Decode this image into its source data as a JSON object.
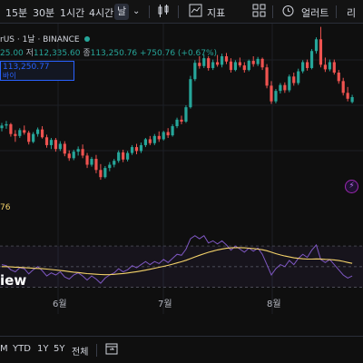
{
  "toolbar": {
    "timeframes": [
      "15분",
      "30분",
      "1시간",
      "4시간",
      "날"
    ],
    "active_timeframe": "날",
    "indicators_label": "지표",
    "alert_label": "얼러트",
    "cut_label": "리"
  },
  "legend": {
    "symbol": "rUS · 1날 · BINANCE",
    "open_tail": "25.00",
    "low_label": "저",
    "low_value": "112,335.60",
    "close_label": "종",
    "close_value": "113,250.76",
    "change": "+750.76 (+0.67%)",
    "price_box_value": "113,250.77",
    "price_box_label": "바이"
  },
  "rsi_value_tail": "76",
  "logo_tail": "iew",
  "months": [
    "6월",
    "7월",
    "8월"
  ],
  "range": {
    "items": [
      "M",
      "YTD",
      "1Y",
      "5Y",
      "전체"
    ]
  },
  "colors": {
    "up": "#26a69a",
    "down": "#ef5350",
    "rsi": "#7e57c2",
    "rsi_ma": "#f5d36a",
    "background": "#0f0f0f"
  },
  "chart_data": {
    "type": "candlestick",
    "title": "",
    "series": [
      {
        "name": "BTCUSDT daily",
        "values": []
      }
    ],
    "candles": [
      [
        108.5,
        109.3,
        108.0,
        108.9
      ],
      [
        108.9,
        109.6,
        108.4,
        109.1
      ],
      [
        109.1,
        109.3,
        107.2,
        107.6
      ],
      [
        107.6,
        108.2,
        106.4,
        107.3
      ],
      [
        107.3,
        108.5,
        107.0,
        108.2
      ],
      [
        108.2,
        108.9,
        107.5,
        107.8
      ],
      [
        107.8,
        108.1,
        106.0,
        106.4
      ],
      [
        106.4,
        107.9,
        106.2,
        107.6
      ],
      [
        107.6,
        108.6,
        107.2,
        108.3
      ],
      [
        108.3,
        108.8,
        106.9,
        107.1
      ],
      [
        107.1,
        107.5,
        105.5,
        105.9
      ],
      [
        105.9,
        107.0,
        105.3,
        106.7
      ],
      [
        106.7,
        107.0,
        104.9,
        105.3
      ],
      [
        105.3,
        106.5,
        105.0,
        106.1
      ],
      [
        106.1,
        106.5,
        104.2,
        104.6
      ],
      [
        104.6,
        105.1,
        103.5,
        103.9
      ],
      [
        103.9,
        105.2,
        103.6,
        104.9
      ],
      [
        104.9,
        105.7,
        104.3,
        105.3
      ],
      [
        105.3,
        106.0,
        103.9,
        104.3
      ],
      [
        104.3,
        104.7,
        102.4,
        102.9
      ],
      [
        102.9,
        104.1,
        102.6,
        103.8
      ],
      [
        103.8,
        104.4,
        101.6,
        102.1
      ],
      [
        102.1,
        103.0,
        100.6,
        101.0
      ],
      [
        101.0,
        102.7,
        100.8,
        102.4
      ],
      [
        102.4,
        103.3,
        101.9,
        102.9
      ],
      [
        102.9,
        103.8,
        102.5,
        103.5
      ],
      [
        103.5,
        105.1,
        103.2,
        104.8
      ],
      [
        104.8,
        105.2,
        103.3,
        103.7
      ],
      [
        103.7,
        105.0,
        103.4,
        104.7
      ],
      [
        104.7,
        105.9,
        104.4,
        105.6
      ],
      [
        105.6,
        106.1,
        104.5,
        105.0
      ],
      [
        105.0,
        106.3,
        104.7,
        105.9
      ],
      [
        105.9,
        107.0,
        105.6,
        106.8
      ],
      [
        106.8,
        107.3,
        105.9,
        106.2
      ],
      [
        106.2,
        107.6,
        105.9,
        107.3
      ],
      [
        107.3,
        108.0,
        106.4,
        106.8
      ],
      [
        106.8,
        108.1,
        106.6,
        107.9
      ],
      [
        107.9,
        108.5,
        107.0,
        107.4
      ],
      [
        107.4,
        109.1,
        107.2,
        108.8
      ],
      [
        108.8,
        110.1,
        108.5,
        109.8
      ],
      [
        109.8,
        110.4,
        109.1,
        109.5
      ],
      [
        109.5,
        112.0,
        109.3,
        111.7
      ],
      [
        111.7,
        116.5,
        111.5,
        116.0
      ],
      [
        116.0,
        118.9,
        115.7,
        118.5
      ],
      [
        118.5,
        119.5,
        117.6,
        118.0
      ],
      [
        118.0,
        119.8,
        117.7,
        119.2
      ],
      [
        119.2,
        119.5,
        117.3,
        117.7
      ],
      [
        117.7,
        119.0,
        117.4,
        118.6
      ],
      [
        118.6,
        119.7,
        117.9,
        118.2
      ],
      [
        118.2,
        119.9,
        117.8,
        119.5
      ],
      [
        119.5,
        120.0,
        118.3,
        118.7
      ],
      [
        118.7,
        119.2,
        117.0,
        117.4
      ],
      [
        117.4,
        118.9,
        117.2,
        118.6
      ],
      [
        118.6,
        119.3,
        117.8,
        118.1
      ],
      [
        118.1,
        118.6,
        117.0,
        117.4
      ],
      [
        117.4,
        119.0,
        117.2,
        118.8
      ],
      [
        118.8,
        119.5,
        117.9,
        118.3
      ],
      [
        118.3,
        119.4,
        118.0,
        119.1
      ],
      [
        119.1,
        119.3,
        117.4,
        117.8
      ],
      [
        117.8,
        118.3,
        114.6,
        115.0
      ],
      [
        115.0,
        115.7,
        112.2,
        112.6
      ],
      [
        112.6,
        114.5,
        112.3,
        114.2
      ],
      [
        114.2,
        115.4,
        113.8,
        115.1
      ],
      [
        115.1,
        115.5,
        113.9,
        114.3
      ],
      [
        114.3,
        116.7,
        114.0,
        116.4
      ],
      [
        116.4,
        117.0,
        115.0,
        115.4
      ],
      [
        115.4,
        117.6,
        115.1,
        117.2
      ],
      [
        117.2,
        118.9,
        116.9,
        118.6
      ],
      [
        118.6,
        119.0,
        117.3,
        117.7
      ],
      [
        117.7,
        120.6,
        117.5,
        120.3
      ],
      [
        120.3,
        122.4,
        119.9,
        122.1
      ],
      [
        122.1,
        124.0,
        117.8,
        118.2
      ],
      [
        118.2,
        119.3,
        117.1,
        117.5
      ],
      [
        117.5,
        119.0,
        117.2,
        118.6
      ],
      [
        118.6,
        119.0,
        116.7,
        117.0
      ],
      [
        117.0,
        117.4,
        115.3,
        115.7
      ],
      [
        115.7,
        116.2,
        113.5,
        113.9
      ],
      [
        113.9,
        114.8,
        112.6,
        113.0
      ],
      [
        112.5,
        113.6,
        112.3,
        113.25
      ]
    ],
    "rsi": [
      52,
      51,
      47,
      45,
      49,
      48,
      43,
      47,
      50,
      46,
      41,
      44,
      42,
      45,
      40,
      38,
      42,
      44,
      41,
      37,
      41,
      38,
      34,
      39,
      42,
      44,
      48,
      45,
      47,
      51,
      49,
      52,
      55,
      52,
      55,
      53,
      57,
      54,
      58,
      62,
      61,
      67,
      77,
      80,
      77,
      80,
      73,
      75,
      72,
      75,
      71,
      66,
      70,
      67,
      64,
      68,
      65,
      68,
      62,
      52,
      42,
      48,
      52,
      50,
      56,
      52,
      58,
      62,
      59,
      66,
      71,
      57,
      54,
      57,
      52,
      47,
      42,
      39,
      41
    ],
    "rsi_ma": [
      50,
      50,
      49.8,
      49.5,
      49.3,
      49.1,
      48.8,
      48.5,
      48.3,
      48.0,
      47.7,
      47.2,
      46.8,
      46.3,
      45.8,
      45.2,
      44.7,
      44.3,
      43.8,
      43.3,
      43.0,
      42.7,
      42.4,
      42.2,
      42.3,
      42.6,
      43.0,
      43.4,
      43.9,
      44.5,
      45.1,
      45.8,
      46.6,
      47.5,
      48.5,
      49.4,
      50.3,
      51.3,
      52.4,
      53.6,
      54.8,
      56.2,
      57.8,
      59.4,
      61.0,
      62.5,
      63.9,
      65.1,
      66.2,
      67.1,
      67.8,
      68.2,
      68.4,
      68.4,
      68.2,
      67.9,
      67.5,
      67.0,
      66.4,
      65.4,
      64.0,
      62.6,
      61.4,
      60.3,
      59.4,
      58.6,
      58.0,
      57.6,
      57.3,
      57.3,
      57.5,
      57.4,
      57.1,
      56.9,
      56.5,
      55.9,
      55.1,
      54.1,
      53.2
    ],
    "months": [
      "6월",
      "7월",
      "8월"
    ]
  }
}
